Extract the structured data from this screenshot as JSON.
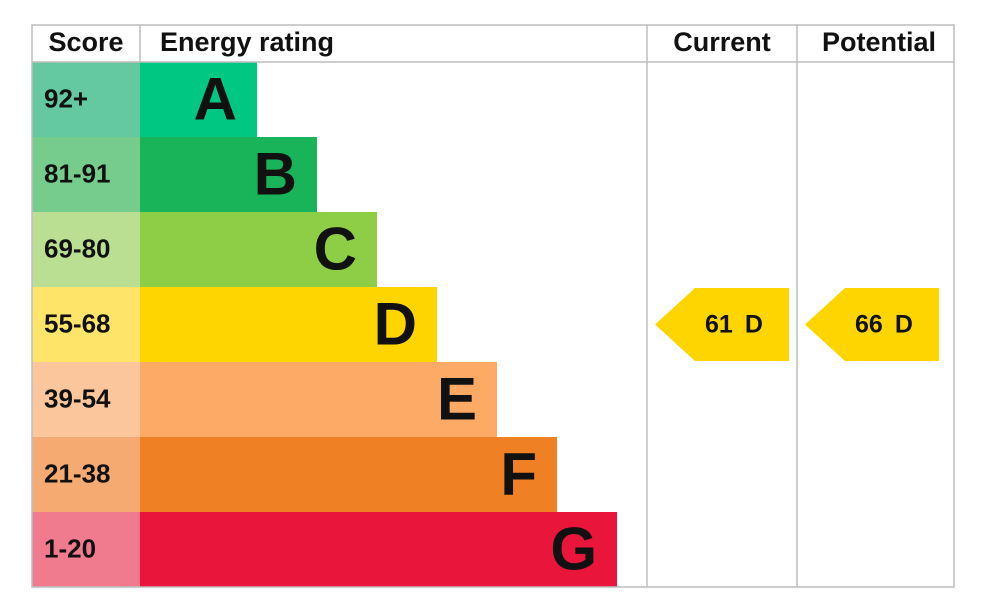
{
  "header": {
    "score": "Score",
    "energy_rating": "Energy rating",
    "current": "Current",
    "potential": "Potential"
  },
  "bands": [
    {
      "score": "92+",
      "letter": "A",
      "color": "#00c781",
      "score_color": "#64c8a0"
    },
    {
      "score": "81-91",
      "letter": "B",
      "color": "#19b459",
      "score_color": "#76cc8c"
    },
    {
      "score": "69-80",
      "letter": "C",
      "color": "#8dce46",
      "score_color": "#badf92"
    },
    {
      "score": "55-68",
      "letter": "D",
      "color": "#ffd500",
      "score_color": "#ffe46a"
    },
    {
      "score": "39-54",
      "letter": "E",
      "color": "#fcaa65",
      "score_color": "#fcc69c"
    },
    {
      "score": "21-38",
      "letter": "F",
      "color": "#ef8023",
      "score_color": "#f4aa70"
    },
    {
      "score": "1-20",
      "letter": "G",
      "color": "#e9153b",
      "score_color": "#f07a8e"
    }
  ],
  "current": {
    "value": 61,
    "rating": "D"
  },
  "potential": {
    "value": 66,
    "rating": "D"
  }
}
